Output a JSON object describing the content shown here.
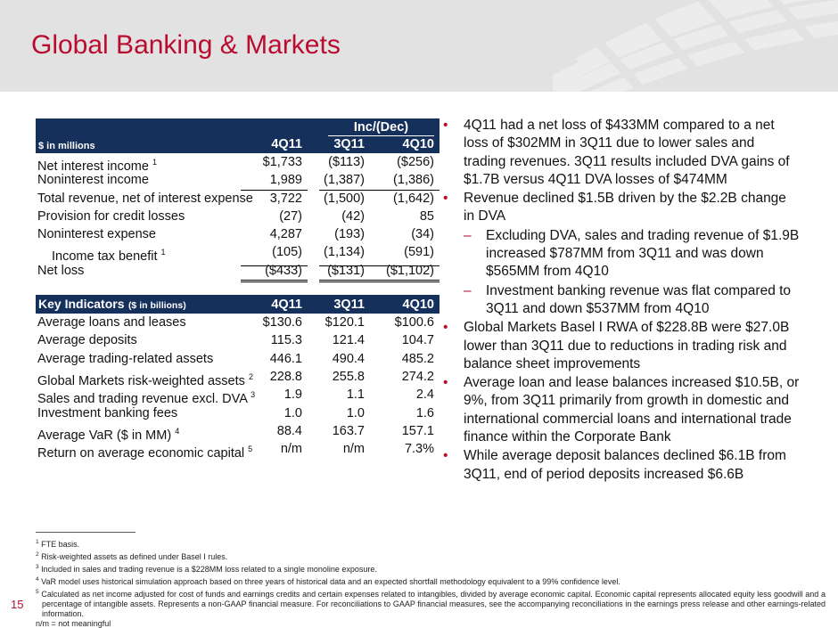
{
  "title": "Global Banking & Markets",
  "page_number": "15",
  "colors": {
    "accent_red": "#ba0c2f",
    "table_header_navy": "#16305c",
    "band_gray": "#e2e2e2",
    "motif_gray": "#ececec"
  },
  "income_table": {
    "corner_label": "$ in millions",
    "group_header": "Inc/(Dec)",
    "col_headers": [
      "4Q11",
      "3Q11",
      "4Q10"
    ],
    "rows": [
      {
        "label": "Net interest income",
        "sup": "1",
        "values": [
          "$1,733",
          "($113)",
          "($256)"
        ]
      },
      {
        "label": "Noninterest income",
        "values": [
          "1,989",
          "(1,387)",
          "(1,386)"
        ],
        "underline": "single"
      },
      {
        "label": "Total revenue, net of interest expense",
        "values": [
          "3,722",
          "(1,500)",
          "(1,642)"
        ]
      },
      {
        "label": "Provision for credit losses",
        "values": [
          "(27)",
          "(42)",
          "85"
        ]
      },
      {
        "label": "Noninterest expense",
        "values": [
          "4,287",
          "(193)",
          "(34)"
        ]
      },
      {
        "label": "Income tax benefit",
        "sup": "1",
        "indent": true,
        "values": [
          "(105)",
          "(1,134)",
          "(591)"
        ],
        "underline": "single"
      },
      {
        "label": "Net loss",
        "values": [
          "($433)",
          "($131)",
          "($1,102)"
        ],
        "underline": "double"
      }
    ]
  },
  "key_table": {
    "header_label": "Key Indicators",
    "header_sub": "($ in billions)",
    "col_headers": [
      "4Q11",
      "3Q11",
      "4Q10"
    ],
    "rows": [
      {
        "label": "Average loans and leases",
        "values": [
          "$130.6",
          "$120.1",
          "$100.6"
        ]
      },
      {
        "label": "Average deposits",
        "values": [
          "115.3",
          "121.4",
          "104.7"
        ]
      },
      {
        "label": "Average trading-related assets",
        "values": [
          "446.1",
          "490.4",
          "485.2"
        ]
      },
      {
        "label": "Global Markets risk-weighted assets",
        "sup": "2",
        "values": [
          "228.8",
          "255.8",
          "274.2"
        ]
      },
      {
        "label": "Sales and trading revenue excl. DVA",
        "sup": "3",
        "values": [
          "1.9",
          "1.1",
          "2.4"
        ]
      },
      {
        "label": "Investment banking fees",
        "values": [
          "1.0",
          "1.0",
          "1.6"
        ]
      },
      {
        "label": "Average VaR ($ in MM)",
        "sup": "4",
        "values": [
          "88.4",
          "163.7",
          "157.1"
        ]
      },
      {
        "label": "Return on average economic capital",
        "sup": "5",
        "values": [
          "n/m",
          "n/m",
          "7.3%"
        ]
      }
    ]
  },
  "bullets": [
    {
      "level": 1,
      "marker": "•",
      "text": "4Q11 had a net loss of $433MM compared to a net loss of $302MM in 3Q11 due to lower sales and trading revenues. 3Q11 results included DVA gains of $1.7B versus 4Q11 DVA losses of $474MM"
    },
    {
      "level": 1,
      "marker": "•",
      "text": "Revenue declined $1.5B driven by the $2.2B change in DVA"
    },
    {
      "level": 2,
      "marker": "–",
      "text": "Excluding DVA, sales and trading revenue of $1.9B increased $787MM from 3Q11 and was down $565MM from 4Q10"
    },
    {
      "level": 2,
      "marker": "–",
      "text": "Investment banking revenue was flat compared to 3Q11 and down $537MM from 4Q10"
    },
    {
      "level": 1,
      "marker": "•",
      "text": "Global Markets Basel I RWA of $228.8B were $27.0B lower than 3Q11 due to reductions in trading risk and balance sheet improvements"
    },
    {
      "level": 1,
      "marker": "•",
      "text": "Average loan and lease balances increased $10.5B, or 9%, from 3Q11 primarily from growth in domestic and international commercial loans and international trade finance within the Corporate Bank"
    },
    {
      "level": 1,
      "marker": "•",
      "text": "While average deposit balances declined $6.1B from 3Q11, end of period deposits increased $6.6B"
    }
  ],
  "footnotes": [
    {
      "sup": "1",
      "text": "FTE basis."
    },
    {
      "sup": "2",
      "text": "Risk-weighted assets as defined under Basel I rules."
    },
    {
      "sup": "3",
      "text": "Included in sales and trading revenue is a $228MM loss related to a single monoline exposure."
    },
    {
      "sup": "4",
      "text": "VaR model uses historical simulation approach based on three years of historical data and an expected shortfall methodology equivalent to a 99% confidence level."
    },
    {
      "sup": "5",
      "text": "Calculated as net income adjusted for cost of funds and earnings credits and certain expenses related to intangibles, divided by average economic capital. Economic capital represents allocated equity less goodwill and a percentage of intangible assets. Represents a non-GAAP financial measure. For reconciliations to GAAP financial measures, see the accompanying reconciliations in the earnings press release and other earnings-related information."
    }
  ],
  "footnotes_nm": "n/m = not meaningful"
}
